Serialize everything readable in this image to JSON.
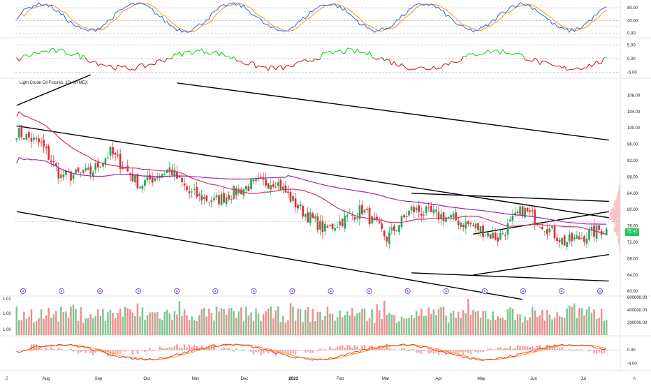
{
  "chart_data": {
    "type": "candlestick",
    "title": "Light Crude Oil Futures, 1D, NYMEX",
    "last_price": "75.42",
    "x_tick_labels": [
      "Aug",
      "Sep",
      "Oct",
      "Nov",
      "Dec",
      "2023",
      "Feb",
      "Mar",
      "Apr",
      "May",
      "Jun",
      "Jul"
    ],
    "price_axis": {
      "ticks": [
        "108.00",
        "104.00",
        "100.00",
        "96.00",
        "92.00",
        "88.00",
        "84.00",
        "80.00",
        "76.00",
        "72.00",
        "68.00",
        "64.00",
        "60.00"
      ],
      "ylim": [
        59,
        112
      ]
    },
    "stoch_axis": {
      "ticks": [
        "80.00",
        "40.00",
        "0.00"
      ],
      "ylim": [
        -10,
        100
      ]
    },
    "momentum_axis": {
      "ticks": [
        "5.00",
        "0.00",
        "-5.00"
      ],
      "ylim": [
        -7,
        7
      ]
    },
    "volume_axis": {
      "ticks": [
        "600000.00",
        "400000.00",
        "200000.00"
      ],
      "ylim": [
        0,
        600000
      ]
    },
    "volume_left_labels": [
      "1.01",
      "1.00",
      "1.00"
    ],
    "macd_axis": {
      "ticks": [
        "0.00",
        "-4.00"
      ],
      "ylim": [
        -6,
        4
      ]
    },
    "event_marker_count": 16,
    "corner_labels": {
      "left": "Z",
      "right": "A"
    }
  },
  "colors": {
    "up": "#22a85a",
    "down": "#e0303a",
    "ma_fast": "#d6336c",
    "ma_slow": "#9c27b0",
    "stoch_k": "#2962ff",
    "stoch_d": "#ff9800",
    "trendline": "#000000",
    "volume_up": "#7ec48f",
    "volume_down": "#ef8d8d",
    "macd_line": "#e53935",
    "signal_line": "#ff9800"
  }
}
